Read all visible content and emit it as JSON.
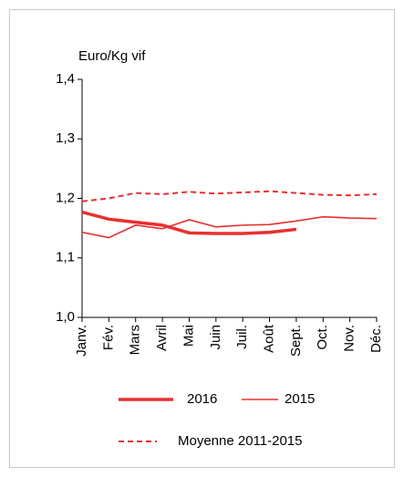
{
  "chart_data": {
    "type": "line",
    "y_axis_label": "Euro/Kg vif",
    "categories": [
      "Janv.",
      "Fév.",
      "Mars",
      "Avril",
      "Mai",
      "Juin",
      "Juil.",
      "Août",
      "Sept.",
      "Oct.",
      "Nov.",
      "Déc."
    ],
    "series": [
      {
        "name": "2016",
        "color": "#e8302f",
        "style": "thick",
        "values": [
          1.177,
          1.165,
          1.16,
          1.155,
          1.142,
          1.141,
          1.141,
          1.143,
          1.148,
          null,
          null,
          null
        ]
      },
      {
        "name": "2015",
        "color": "#e8302f",
        "style": "thin",
        "values": [
          1.143,
          1.134,
          1.155,
          1.149,
          1.164,
          1.152,
          1.155,
          1.156,
          1.162,
          1.169,
          1.167,
          1.166
        ]
      },
      {
        "name": "Moyenne 2011-2015",
        "color": "#e8302f",
        "style": "dashed",
        "values": [
          1.195,
          1.2,
          1.209,
          1.207,
          1.211,
          1.208,
          1.21,
          1.212,
          1.209,
          1.206,
          1.205,
          1.207
        ]
      }
    ],
    "ylim": [
      1.0,
      1.4
    ],
    "yticks": [
      {
        "value": 1.0,
        "label": "1,0"
      },
      {
        "value": 1.1,
        "label": "1,1"
      },
      {
        "value": 1.2,
        "label": "1,2"
      },
      {
        "value": 1.3,
        "label": "1,3"
      },
      {
        "value": 1.4,
        "label": "1,4"
      }
    ]
  }
}
